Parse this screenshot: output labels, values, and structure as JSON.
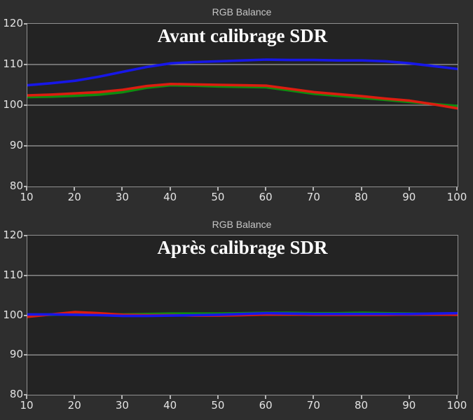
{
  "page": {
    "bg": "#2e2e2e",
    "plot_bg": "#232323",
    "grid_color": "#8a8a8a",
    "border_color": "#919191",
    "tick_text_color": "#e3e3e3",
    "title_color": "#c6c6c6",
    "overlay_title_color": "#ffffff"
  },
  "chart_data": [
    {
      "type": "line",
      "title": "RGB Balance",
      "overlay_title": "Avant calibrage SDR",
      "xlabel": "",
      "ylabel": "",
      "xlim": [
        10,
        100
      ],
      "ylim": [
        80,
        120
      ],
      "xticks": [
        10,
        20,
        30,
        40,
        50,
        60,
        70,
        80,
        90,
        100
      ],
      "yticks": [
        120,
        110,
        100,
        90,
        80
      ],
      "gridlines_y": [
        110,
        100,
        90
      ],
      "grid": "horizontal-only",
      "legend": "none",
      "x": [
        10,
        15,
        20,
        25,
        30,
        35,
        40,
        45,
        50,
        55,
        60,
        65,
        70,
        75,
        80,
        85,
        90,
        95,
        100
      ],
      "series": [
        {
          "name": "Green",
          "color": "#0f8c0f",
          "values": [
            102.0,
            102.1,
            102.3,
            102.6,
            103.2,
            104.3,
            104.9,
            104.8,
            104.6,
            104.5,
            104.4,
            103.6,
            102.8,
            102.3,
            101.8,
            101.3,
            100.8,
            100.3,
            99.8
          ]
        },
        {
          "name": "Red",
          "color": "#dc1d10",
          "values": [
            102.4,
            102.6,
            102.9,
            103.2,
            103.8,
            104.7,
            105.2,
            105.1,
            105.0,
            104.9,
            104.8,
            104.0,
            103.2,
            102.7,
            102.2,
            101.6,
            101.1,
            100.2,
            99.2
          ]
        },
        {
          "name": "Blue",
          "color": "#1717e8",
          "values": [
            104.9,
            105.4,
            106.0,
            107.0,
            108.2,
            109.4,
            110.3,
            110.6,
            110.8,
            111.0,
            111.2,
            111.1,
            111.1,
            111.0,
            111.0,
            110.8,
            110.3,
            109.6,
            108.9
          ]
        }
      ]
    },
    {
      "type": "line",
      "title": "RGB Balance",
      "overlay_title": "Après calibrage SDR",
      "xlabel": "",
      "ylabel": "",
      "xlim": [
        10,
        100
      ],
      "ylim": [
        80,
        120
      ],
      "xticks": [
        10,
        20,
        30,
        40,
        50,
        60,
        70,
        80,
        90,
        100
      ],
      "yticks": [
        120,
        110,
        100,
        90,
        80
      ],
      "gridlines_y": [
        110,
        100,
        90
      ],
      "grid": "horizontal-only",
      "legend": "none",
      "x": [
        10,
        15,
        20,
        25,
        30,
        35,
        40,
        45,
        50,
        55,
        60,
        65,
        70,
        75,
        80,
        85,
        90,
        95,
        100
      ],
      "series": [
        {
          "name": "Green",
          "color": "#0f8c0f",
          "values": [
            99.9,
            100.1,
            100.3,
            100.2,
            100.2,
            100.3,
            100.4,
            100.4,
            100.4,
            100.5,
            100.6,
            100.6,
            100.5,
            100.5,
            100.6,
            100.5,
            100.4,
            100.3,
            100.3
          ]
        },
        {
          "name": "Red",
          "color": "#dc1d10",
          "values": [
            99.6,
            100.2,
            100.8,
            100.5,
            100.1,
            100.0,
            100.0,
            99.9,
            99.9,
            100.0,
            100.2,
            100.2,
            100.1,
            100.1,
            100.1,
            100.1,
            100.2,
            100.2,
            100.1
          ]
        },
        {
          "name": "Blue",
          "color": "#1717e8",
          "values": [
            100.2,
            100.2,
            100.1,
            100.0,
            99.8,
            99.8,
            99.9,
            100.0,
            100.1,
            100.3,
            100.5,
            100.4,
            100.3,
            100.3,
            100.3,
            100.3,
            100.3,
            100.4,
            100.5
          ]
        }
      ]
    }
  ]
}
